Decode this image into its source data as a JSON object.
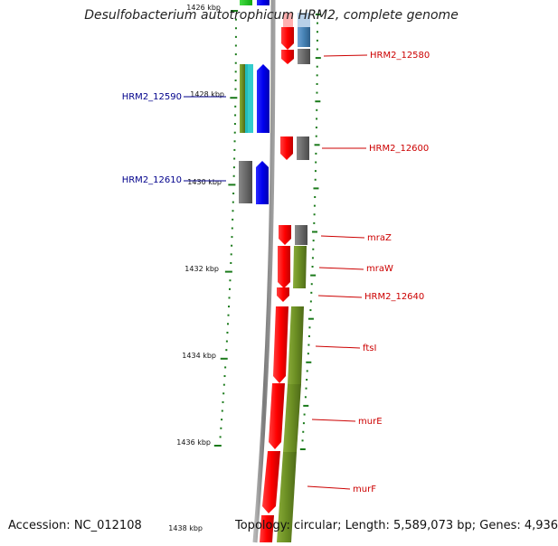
{
  "title": "Desulfobacterium autotrophicum HRM2, complete genome",
  "footer": {
    "accession": "Accession: NC_012108",
    "topology": "Topology: circular; Length: 5,589,073 bp; Genes: 4,936"
  },
  "scale_labels": [
    "1426 kbp",
    "1428 kbp",
    "1430 kbp",
    "1432 kbp",
    "1434 kbp",
    "1436 kbp",
    "1438 kbp"
  ],
  "gene_labels_left": [
    "HRM2_12590",
    "HRM2_12610"
  ],
  "gene_labels_right": [
    "HRM2_12580",
    "HRM2_12600",
    "mraZ",
    "mraW",
    "HRM2_12640",
    "ftsI",
    "murE",
    "murF"
  ],
  "colors": {
    "backbone": "#8a8a8a",
    "reverse_strand": "#ff0000",
    "forward_strand": "#0000ff",
    "cog_olive": "#6b8e23",
    "cog_gray": "#666666",
    "cog_steelblue": "#4682b4",
    "tick": "#1a7a1a",
    "label_left": "#00008b",
    "label_right": "#cc0000"
  }
}
